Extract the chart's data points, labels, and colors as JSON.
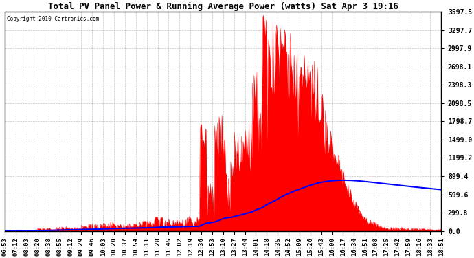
{
  "title": "Total PV Panel Power & Running Average Power (watts) Sat Apr 3 19:16",
  "copyright": "Copyright 2010 Cartronics.com",
  "yticks": [
    0.0,
    299.8,
    599.6,
    899.4,
    1199.2,
    1499.0,
    1798.7,
    2098.5,
    2398.3,
    2698.1,
    2997.9,
    3297.7,
    3597.5
  ],
  "ymax": 3597.5,
  "ymin": 0.0,
  "background_color": "#ffffff",
  "fill_color": "#ff0000",
  "line_color": "#0000ff",
  "grid_color": "#aaaaaa",
  "xtick_labels": [
    "06:53",
    "07:12",
    "08:03",
    "08:20",
    "08:38",
    "08:55",
    "09:12",
    "09:29",
    "09:46",
    "10:03",
    "10:20",
    "10:37",
    "10:54",
    "11:11",
    "11:28",
    "11:45",
    "12:02",
    "12:19",
    "12:36",
    "12:53",
    "13:10",
    "13:27",
    "13:44",
    "14:01",
    "14:18",
    "14:35",
    "14:52",
    "15:09",
    "15:26",
    "15:43",
    "16:00",
    "16:17",
    "16:34",
    "16:51",
    "17:08",
    "17:25",
    "17:42",
    "17:59",
    "18:16",
    "18:33",
    "18:51"
  ],
  "num_ticks": 41,
  "title_fontsize": 9,
  "tick_fontsize": 6.5,
  "ytick_fontsize": 7
}
